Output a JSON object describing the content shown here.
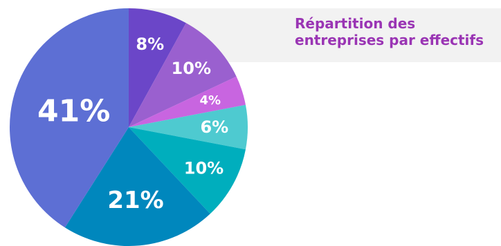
{
  "chart_data": {
    "type": "pie",
    "title": "Répartition des entreprises par effectifs",
    "slices": [
      {
        "value": 8,
        "label": "8%",
        "color": "#6b46c8"
      },
      {
        "value": 10,
        "label": "10%",
        "color": "#9a60cf"
      },
      {
        "value": 4,
        "label": "4%",
        "color": "#c865e0"
      },
      {
        "value": 6,
        "label": "6%",
        "color": "#4ecad0"
      },
      {
        "value": 10,
        "label": "10%",
        "color": "#00aebd"
      },
      {
        "value": 21,
        "label": "21%",
        "color": "#0087bd"
      },
      {
        "value": 41,
        "label": "41%",
        "color": "#5d6fd4"
      }
    ],
    "start": "12 o'clock",
    "direction": "clockwise",
    "legend": "none"
  }
}
